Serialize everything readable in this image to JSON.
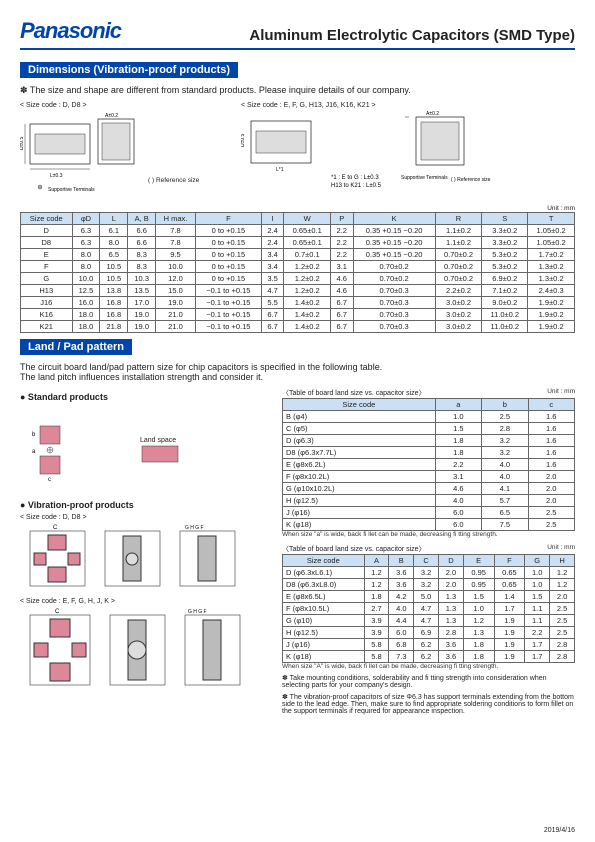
{
  "header": {
    "logo": "Panasonic",
    "title": "Aluminum Electrolytic Capacitors (SMD Type)"
  },
  "section1": {
    "title": "Dimensions (Vibration-proof products)",
    "note": "✽ The size and shape are different from standard products. Please inquire details of our company.",
    "label1": "< Size code : D, D8 >",
    "label2": "< Size code : E, F, G, H13, J16, K16, K21 >",
    "supp": "Supportive Terminals",
    "ref": "( ) Reference size",
    "star": "*1 : E to G : L±0.3",
    "star2": "H13 to K21 : L±0.5",
    "unit": "Unit : mm"
  },
  "dimtable": {
    "headers": [
      "Size code",
      "φD",
      "L",
      "A, B",
      "H max.",
      "F",
      "I",
      "W",
      "P",
      "K",
      "R",
      "S",
      "T"
    ],
    "rows": [
      [
        "D",
        "6.3",
        "6.1",
        "6.6",
        "7.8",
        "0 to +0.15",
        "2.4",
        "0.65±0.1",
        "2.2",
        "0.35 +0.15 −0.20",
        "1.1±0.2",
        "3.3±0.2",
        "1.05±0.2"
      ],
      [
        "D8",
        "6.3",
        "8.0",
        "6.6",
        "7.8",
        "0 to +0.15",
        "2.4",
        "0.65±0.1",
        "2.2",
        "0.35 +0.15 −0.20",
        "1.1±0.2",
        "3.3±0.2",
        "1.05±0.2"
      ],
      [
        "E",
        "8.0",
        "6.5",
        "8.3",
        "9.5",
        "0 to +0.15",
        "3.4",
        "0.7±0.1",
        "2.2",
        "0.35 +0.15 −0.20",
        "0.70±0.2",
        "5.3±0.2",
        "1.7±0.2"
      ],
      [
        "F",
        "8.0",
        "10.5",
        "8.3",
        "10.0",
        "0 to +0.15",
        "3.4",
        "1.2±0.2",
        "3.1",
        "0.70±0.2",
        "0.70±0.2",
        "5.3±0.2",
        "1.3±0.2"
      ],
      [
        "G",
        "10.0",
        "10.5",
        "10.3",
        "12.0",
        "0 to +0.15",
        "3.5",
        "1.2±0.2",
        "4.6",
        "0.70±0.2",
        "0.70±0.2",
        "6.9±0.2",
        "1.3±0.2"
      ],
      [
        "H13",
        "12.5",
        "13.8",
        "13.5",
        "15.0",
        "−0.1 to +0.15",
        "4.7",
        "1.2±0.2",
        "4.6",
        "0.70±0.3",
        "2.2±0.2",
        "7.1±0.2",
        "2.4±0.3"
      ],
      [
        "J16",
        "16.0",
        "16.8",
        "17.0",
        "19.0",
        "−0.1 to +0.15",
        "5.5",
        "1.4±0.2",
        "6.7",
        "0.70±0.3",
        "3.0±0.2",
        "9.0±0.2",
        "1.9±0.2"
      ],
      [
        "K16",
        "18.0",
        "16.8",
        "19.0",
        "21.0",
        "−0.1 to +0.15",
        "6.7",
        "1.4±0.2",
        "6.7",
        "0.70±0.3",
        "3.0±0.2",
        "11.0±0.2",
        "1.9±0.2"
      ],
      [
        "K21",
        "18.0",
        "21.8",
        "19.0",
        "21.0",
        "−0.1 to +0.15",
        "6.7",
        "1.4±0.2",
        "6.7",
        "0.70±0.3",
        "3.0±0.2",
        "11.0±0.2",
        "1.9±0.2"
      ]
    ]
  },
  "section2": {
    "title": "Land / Pad pattern",
    "intro": "The circuit board land/pad pattern size for chip capacitors is specified in the following table.\nThe land pitch influences installation strength and consider it.",
    "std": "● Standard products",
    "vib": "● Vibration-proof products",
    "siz1": "< Size code : D, D8 >",
    "siz2": "< Size code : E, F, G, H, J, K >",
    "land": "Land space"
  },
  "landtable1": {
    "cap": "〈Table of board land size vs. capacitor size〉",
    "unit": "Unit : mm",
    "headers": [
      "Size code",
      "a",
      "b",
      "c"
    ],
    "rows": [
      [
        "B (φ4)",
        "1.0",
        "2.5",
        "1.6"
      ],
      [
        "C (φ5)",
        "1.5",
        "2.8",
        "1.6"
      ],
      [
        "D (φ6.3)",
        "1.8",
        "3.2",
        "1.6"
      ],
      [
        "D8 (φ6.3x7.7L)",
        "1.8",
        "3.2",
        "1.6"
      ],
      [
        "E (φ8x6.2L)",
        "2.2",
        "4.0",
        "1.6"
      ],
      [
        "F (φ8x10.2L)",
        "3.1",
        "4.0",
        "2.0"
      ],
      [
        "G (φ10x10.2L)",
        "4.6",
        "4.1",
        "2.0"
      ],
      [
        "H (φ12.5)",
        "4.0",
        "5.7",
        "2.0"
      ],
      [
        "J (φ16)",
        "6.0",
        "6.5",
        "2.5"
      ],
      [
        "K (φ18)",
        "6.0",
        "7.5",
        "2.5"
      ]
    ],
    "foot": "When size \"a\" is wide, back fi llet can be made, decreasing fi tting strength."
  },
  "landtable2": {
    "cap": "〈Table of board land size vs. capacitor size〉",
    "unit": "Unit : mm",
    "headers": [
      "Size code",
      "A",
      "B",
      "C",
      "D",
      "E",
      "F",
      "G",
      "H"
    ],
    "rows": [
      [
        "D (φ6.3xL6.1)",
        "1.2",
        "3.6",
        "3.2",
        "2.0",
        "0.95",
        "0.65",
        "1.0",
        "1.2"
      ],
      [
        "D8 (φ6.3xL8.0)",
        "1.2",
        "3.6",
        "3.2",
        "2.0",
        "0.95",
        "0.65",
        "1.0",
        "1.2"
      ],
      [
        "E (φ8x6.5L)",
        "1.8",
        "4.2",
        "5.0",
        "1.3",
        "1.5",
        "1.4",
        "1.5",
        "2.0"
      ],
      [
        "F (φ8x10.5L)",
        "2.7",
        "4.0",
        "4.7",
        "1.3",
        "1.0",
        "1.7",
        "1.1",
        "2.5"
      ],
      [
        "G (φ10)",
        "3.9",
        "4.4",
        "4.7",
        "1.3",
        "1.2",
        "1.9",
        "1.1",
        "2.5"
      ],
      [
        "H (φ12.5)",
        "3.9",
        "6.0",
        "6.9",
        "2.8",
        "1.3",
        "1.9",
        "2.2",
        "2.5"
      ],
      [
        "J (φ16)",
        "5.8",
        "6.8",
        "6.2",
        "3.6",
        "1.8",
        "1.9",
        "1.7",
        "2.8"
      ],
      [
        "K (φ18)",
        "5.8",
        "7.3",
        "6.2",
        "3.6",
        "1.8",
        "1.9",
        "1.7",
        "2.8"
      ]
    ],
    "foot": "When size \"A\" is wide, back fi llet can be made, decreasing fi tting strength."
  },
  "notes": {
    "n1": "✽ Take mounting conditions, solderability and fi tting strength into consideration when selecting parts for your company's design.",
    "n2": "✽ The vibration-proof capacitors of size Φ6.3 has support terminals extending from the bottom side to the lead edge. Then, make sure to find appropriate soldering conditions to form fillet on the support terminals if required for appearance inspection."
  },
  "footer": "2019/4/16"
}
